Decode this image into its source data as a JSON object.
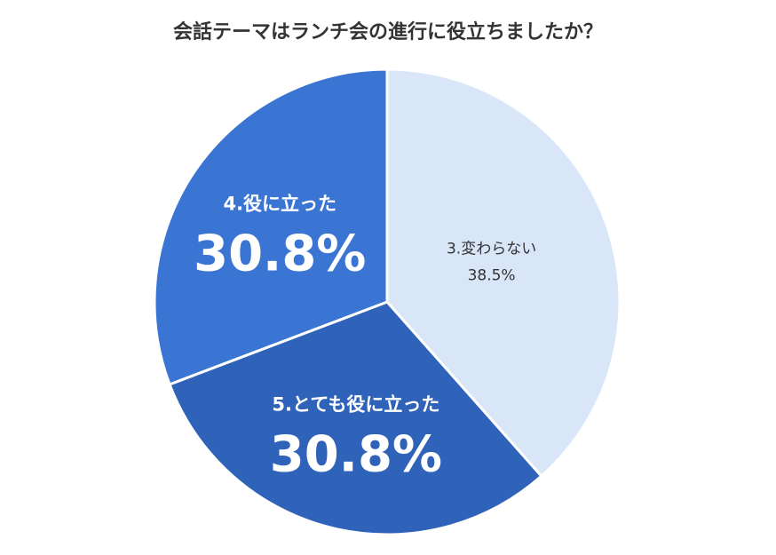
{
  "chart_data": {
    "type": "pie",
    "title": "会話テーマはランチ会の進行に役立ちましたか？",
    "slices": [
      {
        "label": "3.変わらない",
        "value": 38.5,
        "value_label": "38.5%",
        "color": "#d9e6f8"
      },
      {
        "label": "5.とても役に立った",
        "value": 30.8,
        "value_label": "30.8%",
        "color": "#2f62b9"
      },
      {
        "label": "4.役に立った",
        "value": 30.8,
        "value_label": "30.8%",
        "color": "#3a75d4"
      }
    ],
    "start_angle": "12 o'clock",
    "direction": "clockwise",
    "legend": "none"
  }
}
